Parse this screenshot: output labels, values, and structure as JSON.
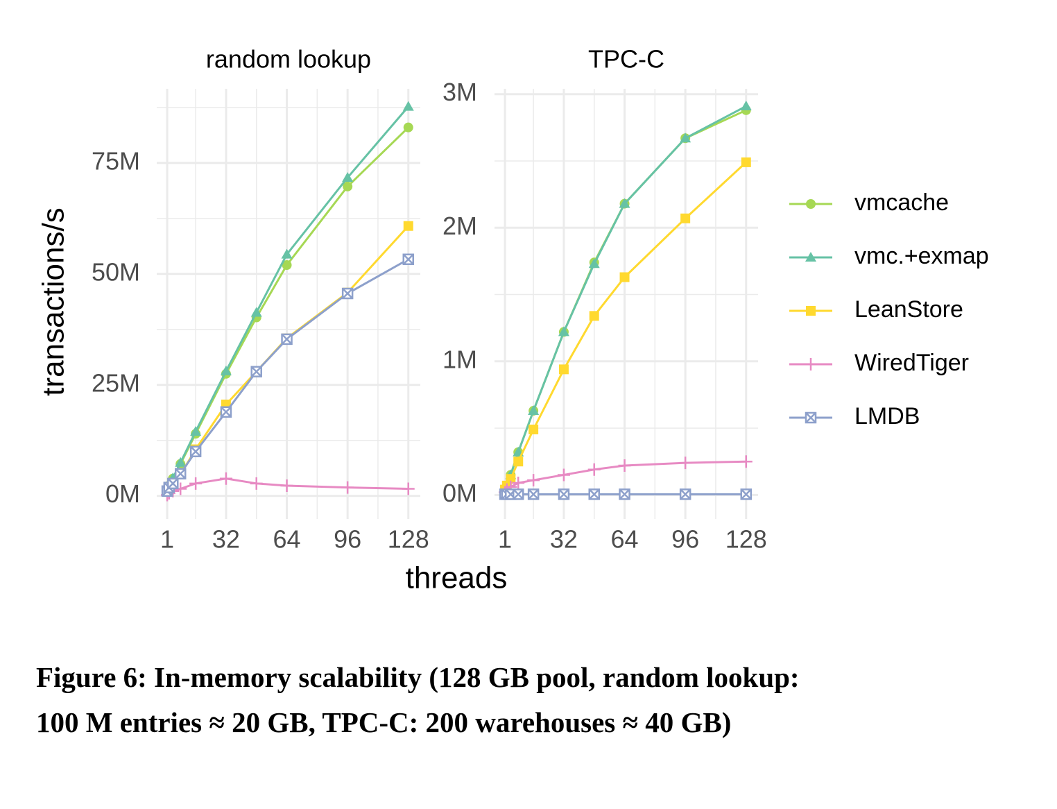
{
  "chart_data": [
    {
      "type": "line",
      "title": "random lookup",
      "x": [
        1,
        2,
        4,
        8,
        16,
        32,
        48,
        64,
        96,
        128
      ],
      "xlim": [
        -4.5,
        134.3
      ],
      "xticks": [
        1,
        32,
        64,
        96,
        128
      ],
      "xgrid_minor": [
        16,
        48,
        80,
        112
      ],
      "ylim": [
        -5200000,
        91700000
      ],
      "yticks": [
        {
          "value": 0,
          "label": "0M"
        },
        {
          "value": 25000000,
          "label": "25M"
        },
        {
          "value": 50000000,
          "label": "50M"
        },
        {
          "value": 75000000,
          "label": "75M"
        }
      ],
      "ygrid_minor": [
        12500000,
        37500000,
        62500000,
        87500000
      ],
      "grid": true,
      "series": [
        {
          "name": "vmcache",
          "color": "#a6d854",
          "marker": "circle",
          "values": [
            1200000,
            2300000,
            3900000,
            7200000,
            14000000,
            27500000,
            40200000,
            52000000,
            69700000,
            83000000
          ]
        },
        {
          "name": "vmc.+exmap",
          "color": "#66c2a5",
          "marker": "triangle",
          "values": [
            1200000,
            2300000,
            4000000,
            7500000,
            14500000,
            28100000,
            41300000,
            54400000,
            71700000,
            87700000
          ]
        },
        {
          "name": "LeanStore",
          "color": "#ffd92f",
          "marker": "square",
          "values": [
            1100000,
            2000000,
            2800000,
            4800000,
            10500000,
            20600000,
            28000000,
            35500000,
            45800000,
            60800000
          ]
        },
        {
          "name": "WiredTiger",
          "color": "#e78ac3",
          "marker": "plus",
          "values": [
            200000,
            600000,
            1100000,
            1600000,
            2800000,
            3900000,
            2800000,
            2300000,
            1900000,
            1600000
          ]
        },
        {
          "name": "LMDB",
          "color": "#8da0cb",
          "marker": "square-x",
          "values": [
            1100000,
            1900000,
            2800000,
            5000000,
            10000000,
            18900000,
            28000000,
            35300000,
            45600000,
            53300000
          ]
        }
      ]
    },
    {
      "type": "line",
      "title": "TPC-C",
      "x": [
        1,
        2,
        4,
        8,
        16,
        32,
        48,
        64,
        96,
        128
      ],
      "xlim": [
        -4.5,
        134.3
      ],
      "xticks": [
        1,
        32,
        64,
        96,
        128
      ],
      "xgrid_minor": [
        16,
        48,
        80,
        112
      ],
      "ylim": [
        -180000,
        3040000
      ],
      "yticks": [
        {
          "value": 0,
          "label": "0M"
        },
        {
          "value": 1000000,
          "label": "1M"
        },
        {
          "value": 2000000,
          "label": "2M"
        },
        {
          "value": 3000000,
          "label": "3M"
        }
      ],
      "ygrid_minor": [
        500000,
        1500000,
        2500000
      ],
      "grid": true,
      "series": [
        {
          "name": "vmcache",
          "color": "#a6d854",
          "marker": "circle",
          "values": [
            30000,
            70000,
            150000,
            320000,
            630000,
            1220000,
            1740000,
            2180000,
            2670000,
            2880000
          ]
        },
        {
          "name": "vmc.+exmap",
          "color": "#66c2a5",
          "marker": "triangle",
          "values": [
            30000,
            70000,
            150000,
            320000,
            630000,
            1220000,
            1730000,
            2180000,
            2670000,
            2910000
          ]
        },
        {
          "name": "LeanStore",
          "color": "#ffd92f",
          "marker": "square",
          "values": [
            40000,
            70000,
            120000,
            250000,
            490000,
            940000,
            1340000,
            1630000,
            2070000,
            2490000
          ]
        },
        {
          "name": "WiredTiger",
          "color": "#e78ac3",
          "marker": "plus",
          "values": [
            20000,
            40000,
            60000,
            90000,
            110000,
            150000,
            190000,
            220000,
            240000,
            250000
          ]
        },
        {
          "name": "LMDB",
          "color": "#8da0cb",
          "marker": "square-x",
          "values": [
            5000,
            5000,
            5000,
            5000,
            5000,
            5000,
            5000,
            5000,
            5000,
            5000
          ]
        }
      ]
    }
  ],
  "ylabel": "transactions/s",
  "xlabel": "threads",
  "caption": [
    "Figure 6: In-memory scalability (128 GB pool, random lookup:",
    "100 M entries ≈ 20 GB, TPC-C: 200 warehouses ≈ 40 GB)"
  ]
}
